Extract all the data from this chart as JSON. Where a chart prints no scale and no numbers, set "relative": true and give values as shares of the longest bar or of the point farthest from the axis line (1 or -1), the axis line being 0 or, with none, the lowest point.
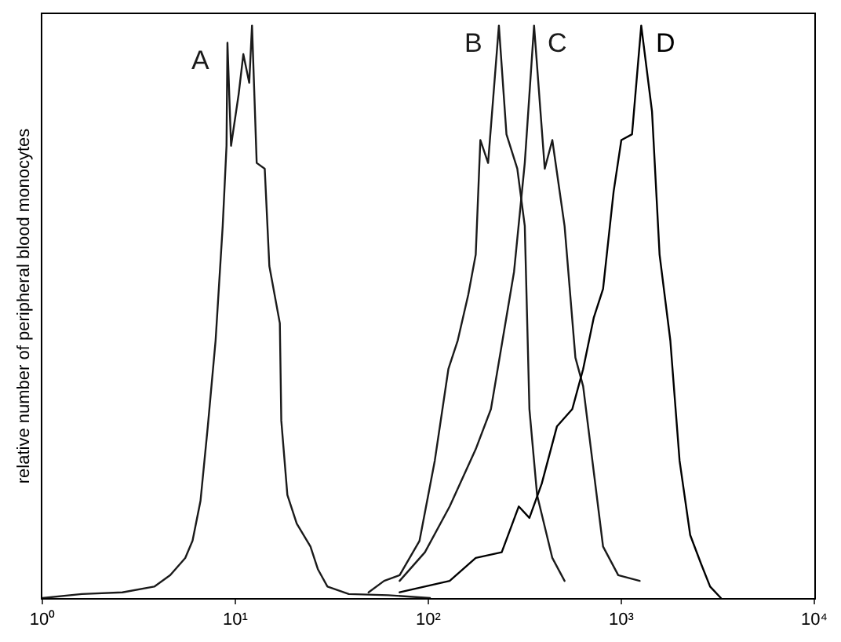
{
  "chart_data": {
    "type": "line",
    "ylabel": "relative number of peripheral blood monocytes",
    "relative": true,
    "log": "x",
    "legend": false,
    "marker": "none",
    "line_style": "solid",
    "xlim": [
      1,
      10000
    ],
    "xticks": [
      {
        "value": 1,
        "label": "10⁰"
      },
      {
        "value": 10,
        "label": "10¹"
      },
      {
        "value": 100,
        "label": "10²"
      },
      {
        "value": 1000,
        "label": "10³"
      },
      {
        "value": 10000,
        "label": "10⁴"
      }
    ],
    "series": [
      {
        "name": "A",
        "color": "#1a1a1a",
        "x": [
          1,
          1.6,
          2.6,
          3.8,
          4.6,
          5.5,
          6.0,
          6.6,
          7.2,
          7.9,
          8.6,
          9.0,
          9.1,
          9.5,
          10.4,
          11,
          11.8,
          12.2,
          12.9,
          14.2,
          15,
          17,
          17.3,
          18.6,
          20.8,
          24.5,
          26.8,
          30,
          38.7,
          62,
          102
        ],
        "values": [
          0,
          0.007,
          0.01,
          0.02,
          0.04,
          0.07,
          0.1,
          0.17,
          0.3,
          0.45,
          0.65,
          0.79,
          0.97,
          0.79,
          0.88,
          0.95,
          0.9,
          1.0,
          0.76,
          0.75,
          0.58,
          0.48,
          0.31,
          0.18,
          0.13,
          0.09,
          0.05,
          0.02,
          0.007,
          0.005,
          0
        ]
      },
      {
        "name": "B",
        "color": "#1a1a1a",
        "x": [
          49,
          59,
          71,
          90,
          108,
          127,
          142,
          161,
          176,
          186,
          204,
          232,
          254,
          289,
          316,
          334,
          366,
          439,
          508
        ],
        "values": [
          0.01,
          0.03,
          0.04,
          0.1,
          0.24,
          0.4,
          0.45,
          0.53,
          0.6,
          0.8,
          0.76,
          1.0,
          0.81,
          0.75,
          0.65,
          0.33,
          0.18,
          0.07,
          0.03
        ]
      },
      {
        "name": "C",
        "color": "#1a1a1a",
        "x": [
          71,
          96,
          129,
          176,
          211,
          245,
          278,
          316,
          353,
          401,
          439,
          508,
          578,
          634,
          720,
          804,
          964,
          1245
        ],
        "values": [
          0.03,
          0.08,
          0.16,
          0.26,
          0.33,
          0.46,
          0.57,
          0.76,
          1.0,
          0.75,
          0.8,
          0.65,
          0.42,
          0.37,
          0.22,
          0.09,
          0.04,
          0.03
        ]
      },
      {
        "name": "D",
        "color": "#000000",
        "x": [
          71,
          129,
          176,
          240,
          294,
          334,
          387,
          464,
          557,
          634,
          720,
          804,
          912,
          1000,
          1136,
          1268,
          1442,
          1578,
          1794,
          2003,
          2274,
          2588,
          2884,
          3281
        ],
        "values": [
          0.01,
          0.03,
          0.07,
          0.08,
          0.16,
          0.14,
          0.2,
          0.3,
          0.33,
          0.4,
          0.49,
          0.54,
          0.71,
          0.8,
          0.81,
          1.0,
          0.85,
          0.6,
          0.45,
          0.24,
          0.11,
          0.06,
          0.02,
          0
        ]
      }
    ]
  }
}
